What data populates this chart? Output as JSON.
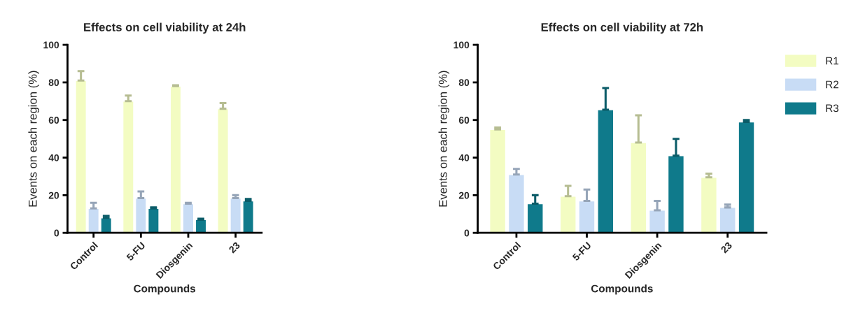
{
  "chart_data": [
    {
      "type": "bar",
      "title": "Effects on cell viability at 24h",
      "xlabel": "Compounds",
      "ylabel": "Events on each region (%)",
      "categories": [
        "Control",
        "5-FU",
        "Diosgenin",
        "23"
      ],
      "ylim": [
        0,
        100
      ],
      "yticks": [
        0,
        20,
        40,
        60,
        80,
        100
      ],
      "grid": false,
      "legend": false,
      "series": [
        {
          "color": "#f3fcc2",
          "values": [
            81,
            70,
            78,
            66
          ],
          "errors": [
            [
              81,
              86
            ],
            [
              70,
              73
            ],
            [
              78,
              78.5
            ],
            [
              66,
              69
            ]
          ]
        },
        {
          "color": "#c8dcf5",
          "values": [
            13,
            18.5,
            15.5,
            18.5
          ],
          "errors": [
            [
              13,
              16
            ],
            [
              18.5,
              22
            ],
            [
              15.5,
              16
            ],
            [
              18.5,
              20
            ]
          ]
        },
        {
          "color": "#0f7a8b",
          "values": [
            8,
            13,
            7,
            17
          ],
          "errors": [
            [
              8,
              9
            ],
            [
              13,
              13.5
            ],
            [
              7,
              7.5
            ],
            [
              17,
              18
            ]
          ]
        }
      ]
    },
    {
      "type": "bar",
      "title": "Effects on cell viability at 72h",
      "xlabel": "Compounds",
      "ylabel": "Events on each region (%)",
      "categories": [
        "Control",
        "5-FU",
        "Diosgenin",
        "23"
      ],
      "ylim": [
        0,
        100
      ],
      "yticks": [
        0,
        20,
        40,
        60,
        80,
        100
      ],
      "grid": false,
      "legend": "right",
      "series": [
        {
          "name": "R1",
          "color": "#f3fcc2",
          "values": [
            55,
            19.5,
            48,
            29.5
          ],
          "errors": [
            [
              55,
              56
            ],
            [
              19.5,
              25
            ],
            [
              48,
              62.5
            ],
            [
              29.5,
              31.5
            ]
          ]
        },
        {
          "name": "R2",
          "color": "#c8dcf5",
          "values": [
            31,
            17,
            12,
            13.5
          ],
          "errors": [
            [
              31,
              34
            ],
            [
              17,
              23
            ],
            [
              12,
              17
            ],
            [
              13.5,
              15
            ]
          ]
        },
        {
          "name": "R3",
          "color": "#0f7a8b",
          "values": [
            15.5,
            65.5,
            41,
            59
          ],
          "errors": [
            [
              15.5,
              20
            ],
            [
              65.5,
              77
            ],
            [
              41,
              50
            ],
            [
              59,
              60
            ]
          ]
        }
      ]
    }
  ]
}
